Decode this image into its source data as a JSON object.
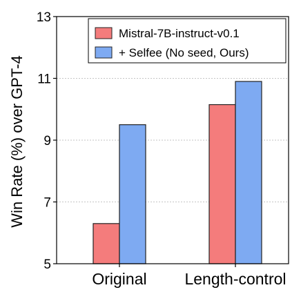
{
  "chart_data": {
    "type": "bar",
    "title": "",
    "xlabel": "",
    "ylabel": "Win Rate (%) over GPT-4",
    "categories": [
      "Original",
      "Length-control"
    ],
    "series": [
      {
        "name": "Mistral-7B-instruct-v0.1",
        "values": [
          6.3,
          10.15
        ],
        "color": "#f47c7c"
      },
      {
        "name": "+ Selfee (No seed, Ours)",
        "values": [
          9.5,
          10.9
        ],
        "color": "#7eaaf2"
      }
    ],
    "ylim": [
      5,
      13
    ],
    "yticks": [
      5,
      7,
      9,
      11,
      13
    ],
    "grid": "horizontal-dashed",
    "legend_position": "top-right"
  }
}
